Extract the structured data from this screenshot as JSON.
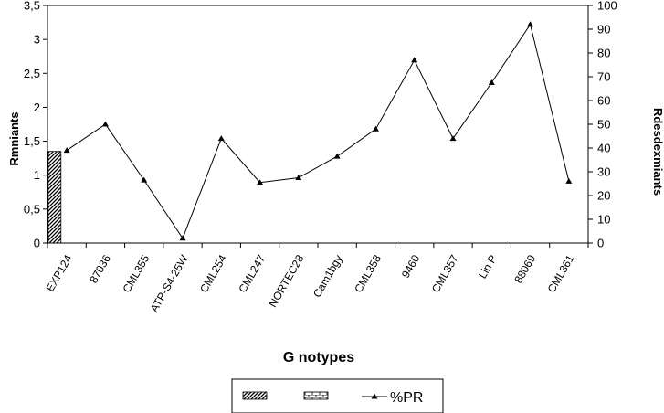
{
  "chart_data": {
    "type": "bar",
    "categories": [
      "EXP124",
      "87036",
      "CML355",
      "ATP-S4-25W",
      "CML254",
      "CML247",
      "NORTEC28",
      "Cam1bgy",
      "CML358",
      "9460",
      "CML357",
      "Lin P",
      "88069",
      "CML361"
    ],
    "series": [
      {
        "name": "",
        "type": "bar",
        "axis": "left",
        "values": [
          1.35,
          null,
          null,
          null,
          null,
          null,
          null,
          null,
          null,
          null,
          null,
          null,
          null,
          null
        ]
      },
      {
        "name": "",
        "type": "bar",
        "axis": "left",
        "values": [
          null,
          null,
          null,
          null,
          null,
          null,
          null,
          null,
          null,
          null,
          null,
          null,
          null,
          null
        ]
      },
      {
        "name": "%PR",
        "type": "line",
        "axis": "right",
        "values": [
          39,
          50,
          26.5,
          2,
          44,
          25.5,
          27.5,
          36.5,
          48,
          77,
          44,
          67.5,
          92,
          26
        ]
      }
    ],
    "xlabel": "G notypes",
    "ylabel": "Rmniants",
    "y2label": "Rdesdexmiants",
    "ylim": [
      0,
      3.5
    ],
    "y2lim": [
      0,
      100
    ],
    "yticks": [
      "0",
      "0,5",
      "1",
      "1,5",
      "2",
      "2,5",
      "3",
      "3,5"
    ],
    "y2ticks": [
      "0",
      "10",
      "20",
      "30",
      "40",
      "50",
      "60",
      "70",
      "80",
      "90",
      "100"
    ],
    "grid": false,
    "legend": {
      "placement": "bottom",
      "entries": [
        {
          "label": "",
          "marker": "hatched-bar"
        },
        {
          "label": "",
          "marker": "brick-bar"
        },
        {
          "label": "%PR",
          "marker": "line-triangle"
        }
      ]
    }
  }
}
